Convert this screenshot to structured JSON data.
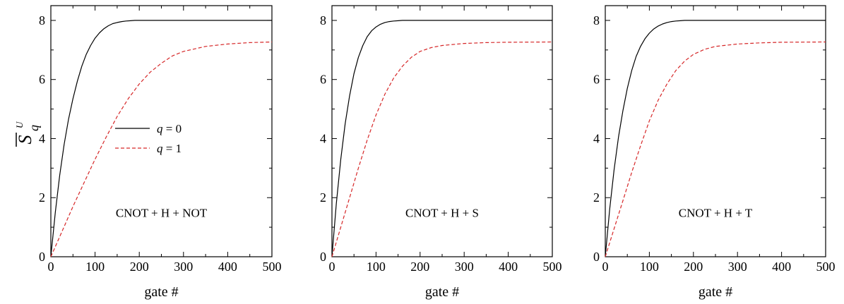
{
  "chart_data": [
    {
      "type": "line",
      "annotation": "CNOT + H + NOT",
      "xlabel": "gate #",
      "ylabel": {
        "base": "S",
        "subscript": "q",
        "superscript": "U"
      },
      "xlim": [
        0,
        500
      ],
      "ylim": [
        0,
        8.5
      ],
      "xticks": [
        "0",
        "100",
        "200",
        "300",
        "400",
        "500"
      ],
      "yticks": [
        "0",
        "2",
        "4",
        "6",
        "8"
      ],
      "legend": {
        "position": "middle-left",
        "entries": [
          "q = 0",
          "q = 1"
        ],
        "symbol": "q",
        "values": [
          "0",
          "1"
        ]
      },
      "series": [
        {
          "name": "q = 0",
          "color": "#000000",
          "dash": "solid",
          "x": [
            0,
            10,
            20,
            30,
            40,
            50,
            60,
            70,
            80,
            90,
            100,
            110,
            120,
            130,
            140,
            150,
            160,
            170,
            180,
            190,
            200,
            250,
            300,
            400,
            500
          ],
          "y": [
            0,
            1.5,
            2.75,
            3.8,
            4.65,
            5.35,
            5.95,
            6.45,
            6.85,
            7.15,
            7.4,
            7.58,
            7.72,
            7.82,
            7.89,
            7.93,
            7.96,
            7.98,
            7.99,
            8.0,
            8.0,
            8.0,
            8.0,
            8.0,
            8.0
          ]
        },
        {
          "name": "q = 1",
          "color": "#d62728",
          "dash": "dashed",
          "x": [
            0,
            25,
            50,
            75,
            100,
            125,
            150,
            175,
            200,
            225,
            250,
            275,
            300,
            350,
            400,
            450,
            500
          ],
          "y": [
            0,
            0.85,
            1.7,
            2.5,
            3.3,
            4.05,
            4.75,
            5.35,
            5.85,
            6.25,
            6.55,
            6.8,
            6.95,
            7.12,
            7.2,
            7.25,
            7.27
          ]
        }
      ]
    },
    {
      "type": "line",
      "annotation": "CNOT + H + S",
      "xlabel": "gate #",
      "xlim": [
        0,
        500
      ],
      "ylim": [
        0,
        8.5
      ],
      "xticks": [
        "0",
        "100",
        "200",
        "300",
        "400",
        "500"
      ],
      "yticks": [
        "0",
        "2",
        "4",
        "6",
        "8"
      ],
      "series": [
        {
          "color": "#000000",
          "dash": "solid",
          "x": [
            0,
            10,
            20,
            30,
            40,
            50,
            60,
            70,
            80,
            90,
            100,
            110,
            120,
            130,
            140,
            150,
            160,
            180,
            200,
            250,
            300,
            400,
            500
          ],
          "y": [
            0,
            1.8,
            3.3,
            4.5,
            5.45,
            6.2,
            6.75,
            7.15,
            7.45,
            7.65,
            7.78,
            7.87,
            7.93,
            7.96,
            7.98,
            7.99,
            8.0,
            8.0,
            8.0,
            8.0,
            8.0,
            8.0,
            8.0
          ]
        },
        {
          "color": "#d62728",
          "dash": "dashed",
          "x": [
            0,
            20,
            40,
            60,
            80,
            100,
            120,
            140,
            160,
            180,
            200,
            225,
            250,
            300,
            350,
            400,
            500
          ],
          "y": [
            0,
            1.0,
            2.0,
            3.0,
            3.95,
            4.8,
            5.5,
            6.05,
            6.45,
            6.75,
            6.95,
            7.08,
            7.15,
            7.22,
            7.25,
            7.26,
            7.27
          ]
        }
      ]
    },
    {
      "type": "line",
      "annotation": "CNOT + H + T",
      "xlabel": "gate #",
      "xlim": [
        0,
        500
      ],
      "ylim": [
        0,
        8.5
      ],
      "xticks": [
        "0",
        "100",
        "200",
        "300",
        "400",
        "500"
      ],
      "yticks": [
        "0",
        "2",
        "4",
        "6",
        "8"
      ],
      "series": [
        {
          "color": "#000000",
          "dash": "solid",
          "x": [
            0,
            10,
            20,
            30,
            40,
            50,
            60,
            70,
            80,
            90,
            100,
            110,
            120,
            130,
            140,
            150,
            160,
            170,
            180,
            200,
            250,
            300,
            400,
            500
          ],
          "y": [
            0,
            1.6,
            2.95,
            4.05,
            4.95,
            5.7,
            6.3,
            6.78,
            7.12,
            7.38,
            7.57,
            7.71,
            7.81,
            7.88,
            7.93,
            7.96,
            7.98,
            7.99,
            8.0,
            8.0,
            8.0,
            8.0,
            8.0,
            8.0
          ]
        },
        {
          "color": "#d62728",
          "dash": "dashed",
          "x": [
            0,
            20,
            40,
            60,
            80,
            100,
            120,
            140,
            160,
            180,
            200,
            225,
            250,
            300,
            350,
            400,
            500
          ],
          "y": [
            0,
            0.95,
            1.9,
            2.85,
            3.75,
            4.6,
            5.3,
            5.85,
            6.3,
            6.62,
            6.85,
            7.02,
            7.12,
            7.2,
            7.24,
            7.26,
            7.27
          ]
        }
      ]
    }
  ]
}
